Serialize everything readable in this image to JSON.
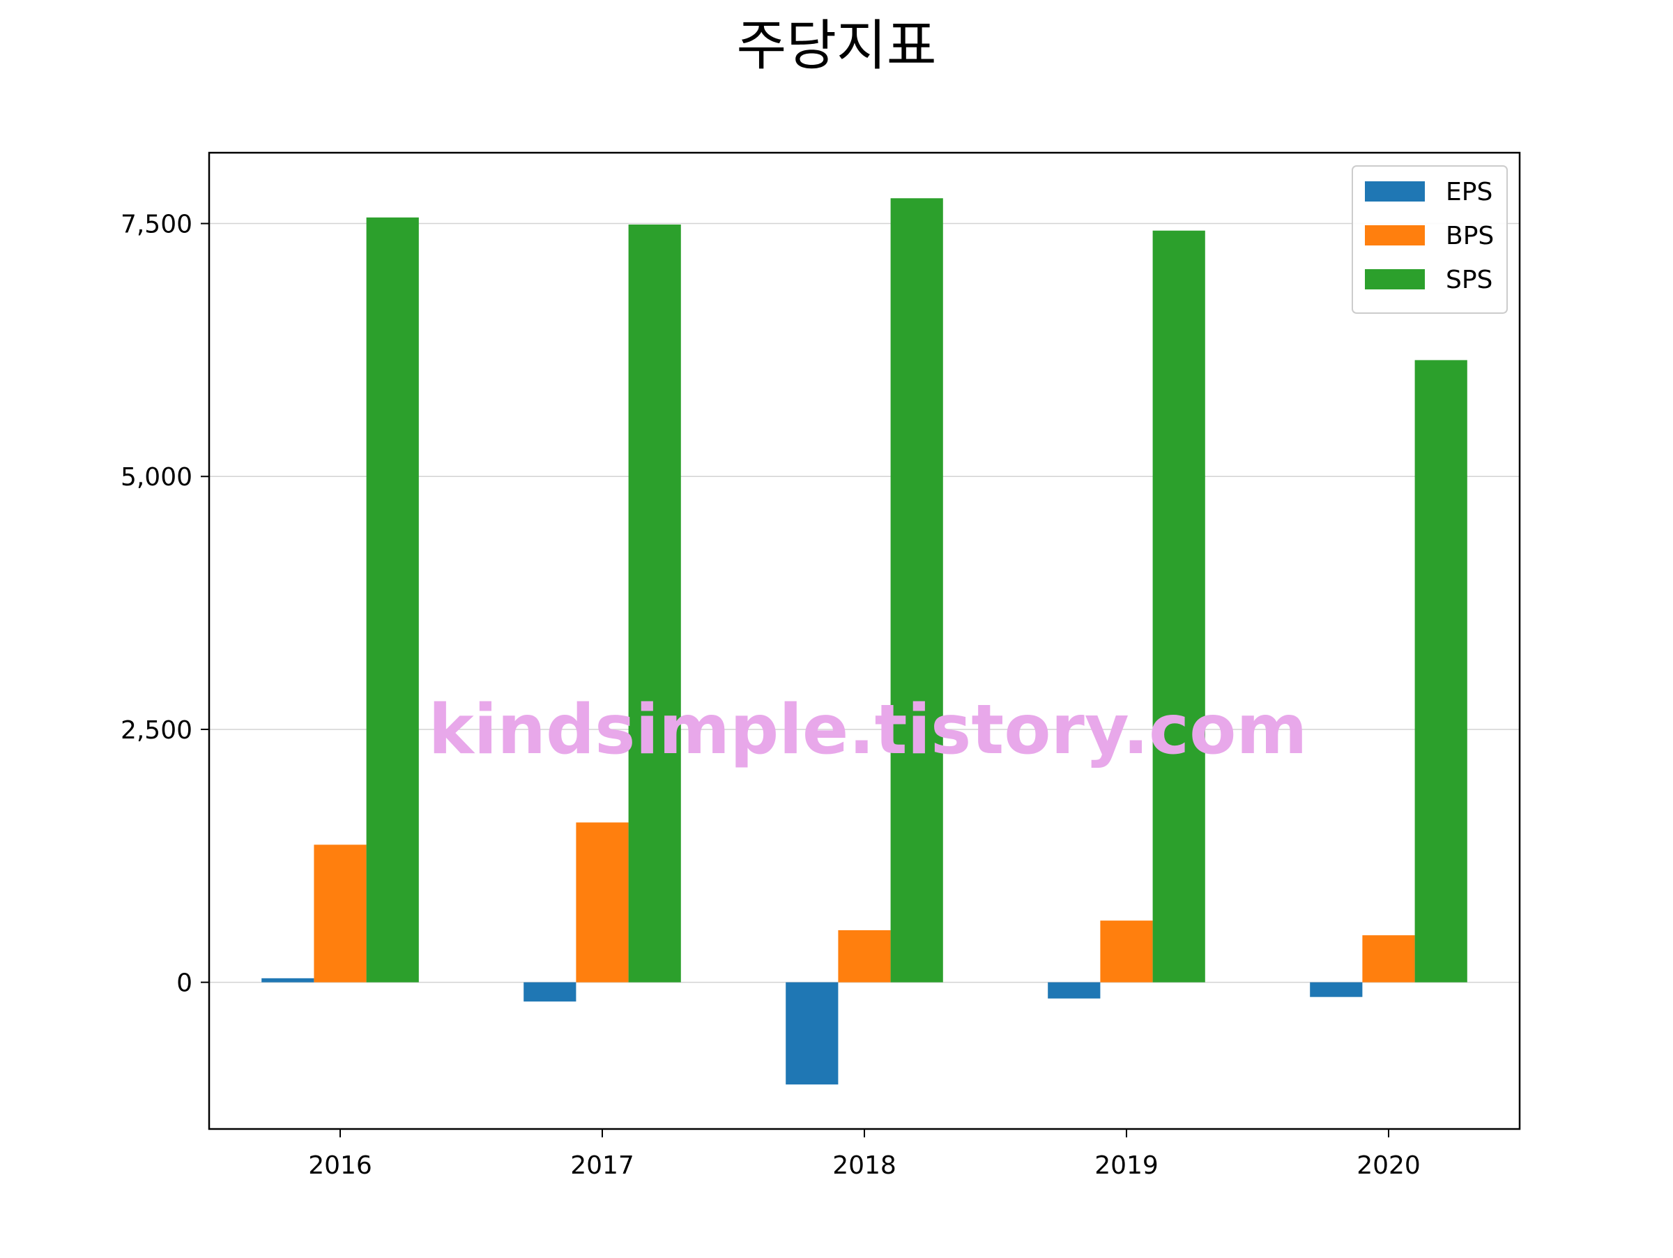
{
  "chart_data": {
    "type": "bar",
    "title": "주당지표",
    "xlabel": "",
    "ylabel": "",
    "categories": [
      "2016",
      "2017",
      "2018",
      "2019",
      "2020"
    ],
    "series": [
      {
        "name": "EPS",
        "color": "#1f77b4",
        "values": [
          40,
          -190,
          -1010,
          -160,
          -145
        ]
      },
      {
        "name": "BPS",
        "color": "#ff7f0e",
        "values": [
          1360,
          1580,
          515,
          610,
          465
        ]
      },
      {
        "name": "SPS",
        "color": "#2ca02c",
        "values": [
          7560,
          7490,
          7750,
          7430,
          6150
        ]
      }
    ],
    "ylim": [
      -1450,
      8200
    ],
    "yticks": [
      0,
      2500,
      5000,
      7500
    ],
    "ytick_labels": [
      "0",
      "2,500",
      "5,000",
      "7,500"
    ],
    "grid": "horizontal",
    "legend_position": "top-right"
  },
  "watermark": "kindsimple.tistory.com",
  "colors": {
    "grid": "#d3d3d3",
    "watermark": "#e8a8ea",
    "axis": "#000000"
  }
}
